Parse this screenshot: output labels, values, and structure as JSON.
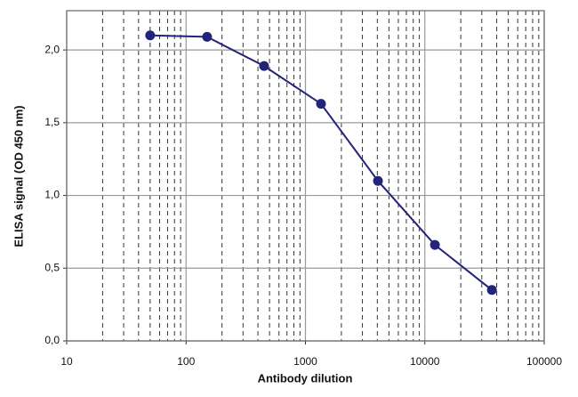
{
  "chart_data": {
    "type": "line",
    "x_label": "Antibody dilution",
    "y_label": "ELISA signal (OD 450 nm)",
    "x_scale": "log",
    "x": [
      50,
      150,
      450,
      1350,
      4050,
      12150,
      36450
    ],
    "series": [
      {
        "color": "#23237a",
        "values": [
          2.1,
          2.09,
          1.89,
          1.63,
          1.1,
          0.66,
          0.35
        ]
      }
    ],
    "xlim": [
      10,
      100000
    ],
    "xticks": [
      10,
      100,
      1000,
      10000,
      100000
    ],
    "ylim": [
      0,
      2.27
    ],
    "yticks": [
      {
        "value": 0,
        "label": "0,0"
      },
      {
        "value": 0.5,
        "label": "0,5"
      },
      {
        "value": 1,
        "label": "1,0"
      },
      {
        "value": 1.5,
        "label": "1,5"
      },
      {
        "value": 2,
        "label": "2,0"
      }
    ],
    "grid": true,
    "minor_grid": true
  }
}
